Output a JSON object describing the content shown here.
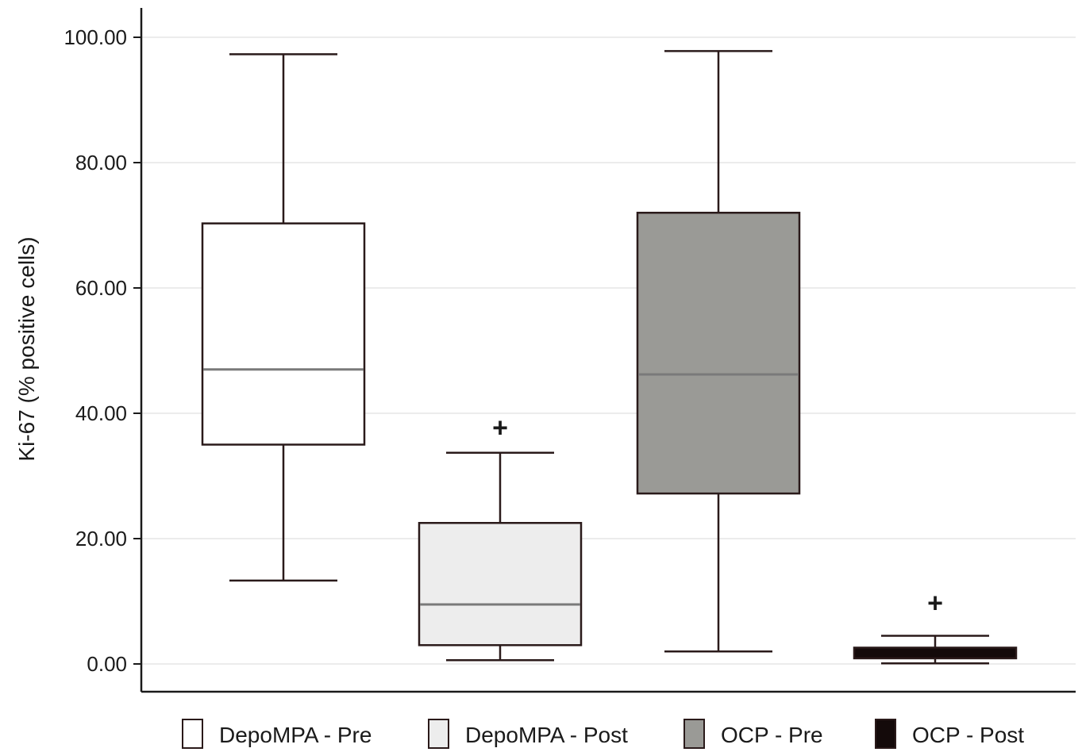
{
  "chart_data": {
    "type": "boxplot",
    "ylabel": "Ki-67 (% positive cells)",
    "xlabel": "",
    "title": "",
    "ylim": [
      0,
      100
    ],
    "yticks": [
      "0.00",
      "20.00",
      "40.00",
      "60.00",
      "80.00",
      "100.00"
    ],
    "grid": "horizontal",
    "legend_position": "bottom",
    "groups": [
      {
        "name": "DepoMPA - Pre",
        "fill": "#ffffff",
        "median_color": "#7a7a7a",
        "whisker_low": 13.3,
        "q1": 35.0,
        "median": 47.0,
        "q3": 70.3,
        "whisker_high": 97.3,
        "outliers": []
      },
      {
        "name": "DepoMPA - Post",
        "fill": "#ededed",
        "median_color": "#7a7a7a",
        "whisker_low": 0.6,
        "q1": 3.0,
        "median": 9.5,
        "q3": 22.5,
        "whisker_high": 33.7,
        "outliers": [
          37.8
        ]
      },
      {
        "name": "OCP - Pre",
        "fill": "#9a9a96",
        "median_color": "#7a7a7a",
        "whisker_low": 2.0,
        "q1": 27.2,
        "median": 46.2,
        "q3": 72.0,
        "whisker_high": 97.8,
        "outliers": []
      },
      {
        "name": "OCP - Post",
        "fill": "#140a0a",
        "median_color": "#140a0a",
        "whisker_low": 0.1,
        "q1": 0.9,
        "median": 1.6,
        "q3": 2.6,
        "whisker_high": 4.5,
        "outliers": [
          9.8
        ]
      }
    ],
    "outlier_marker": "+"
  }
}
